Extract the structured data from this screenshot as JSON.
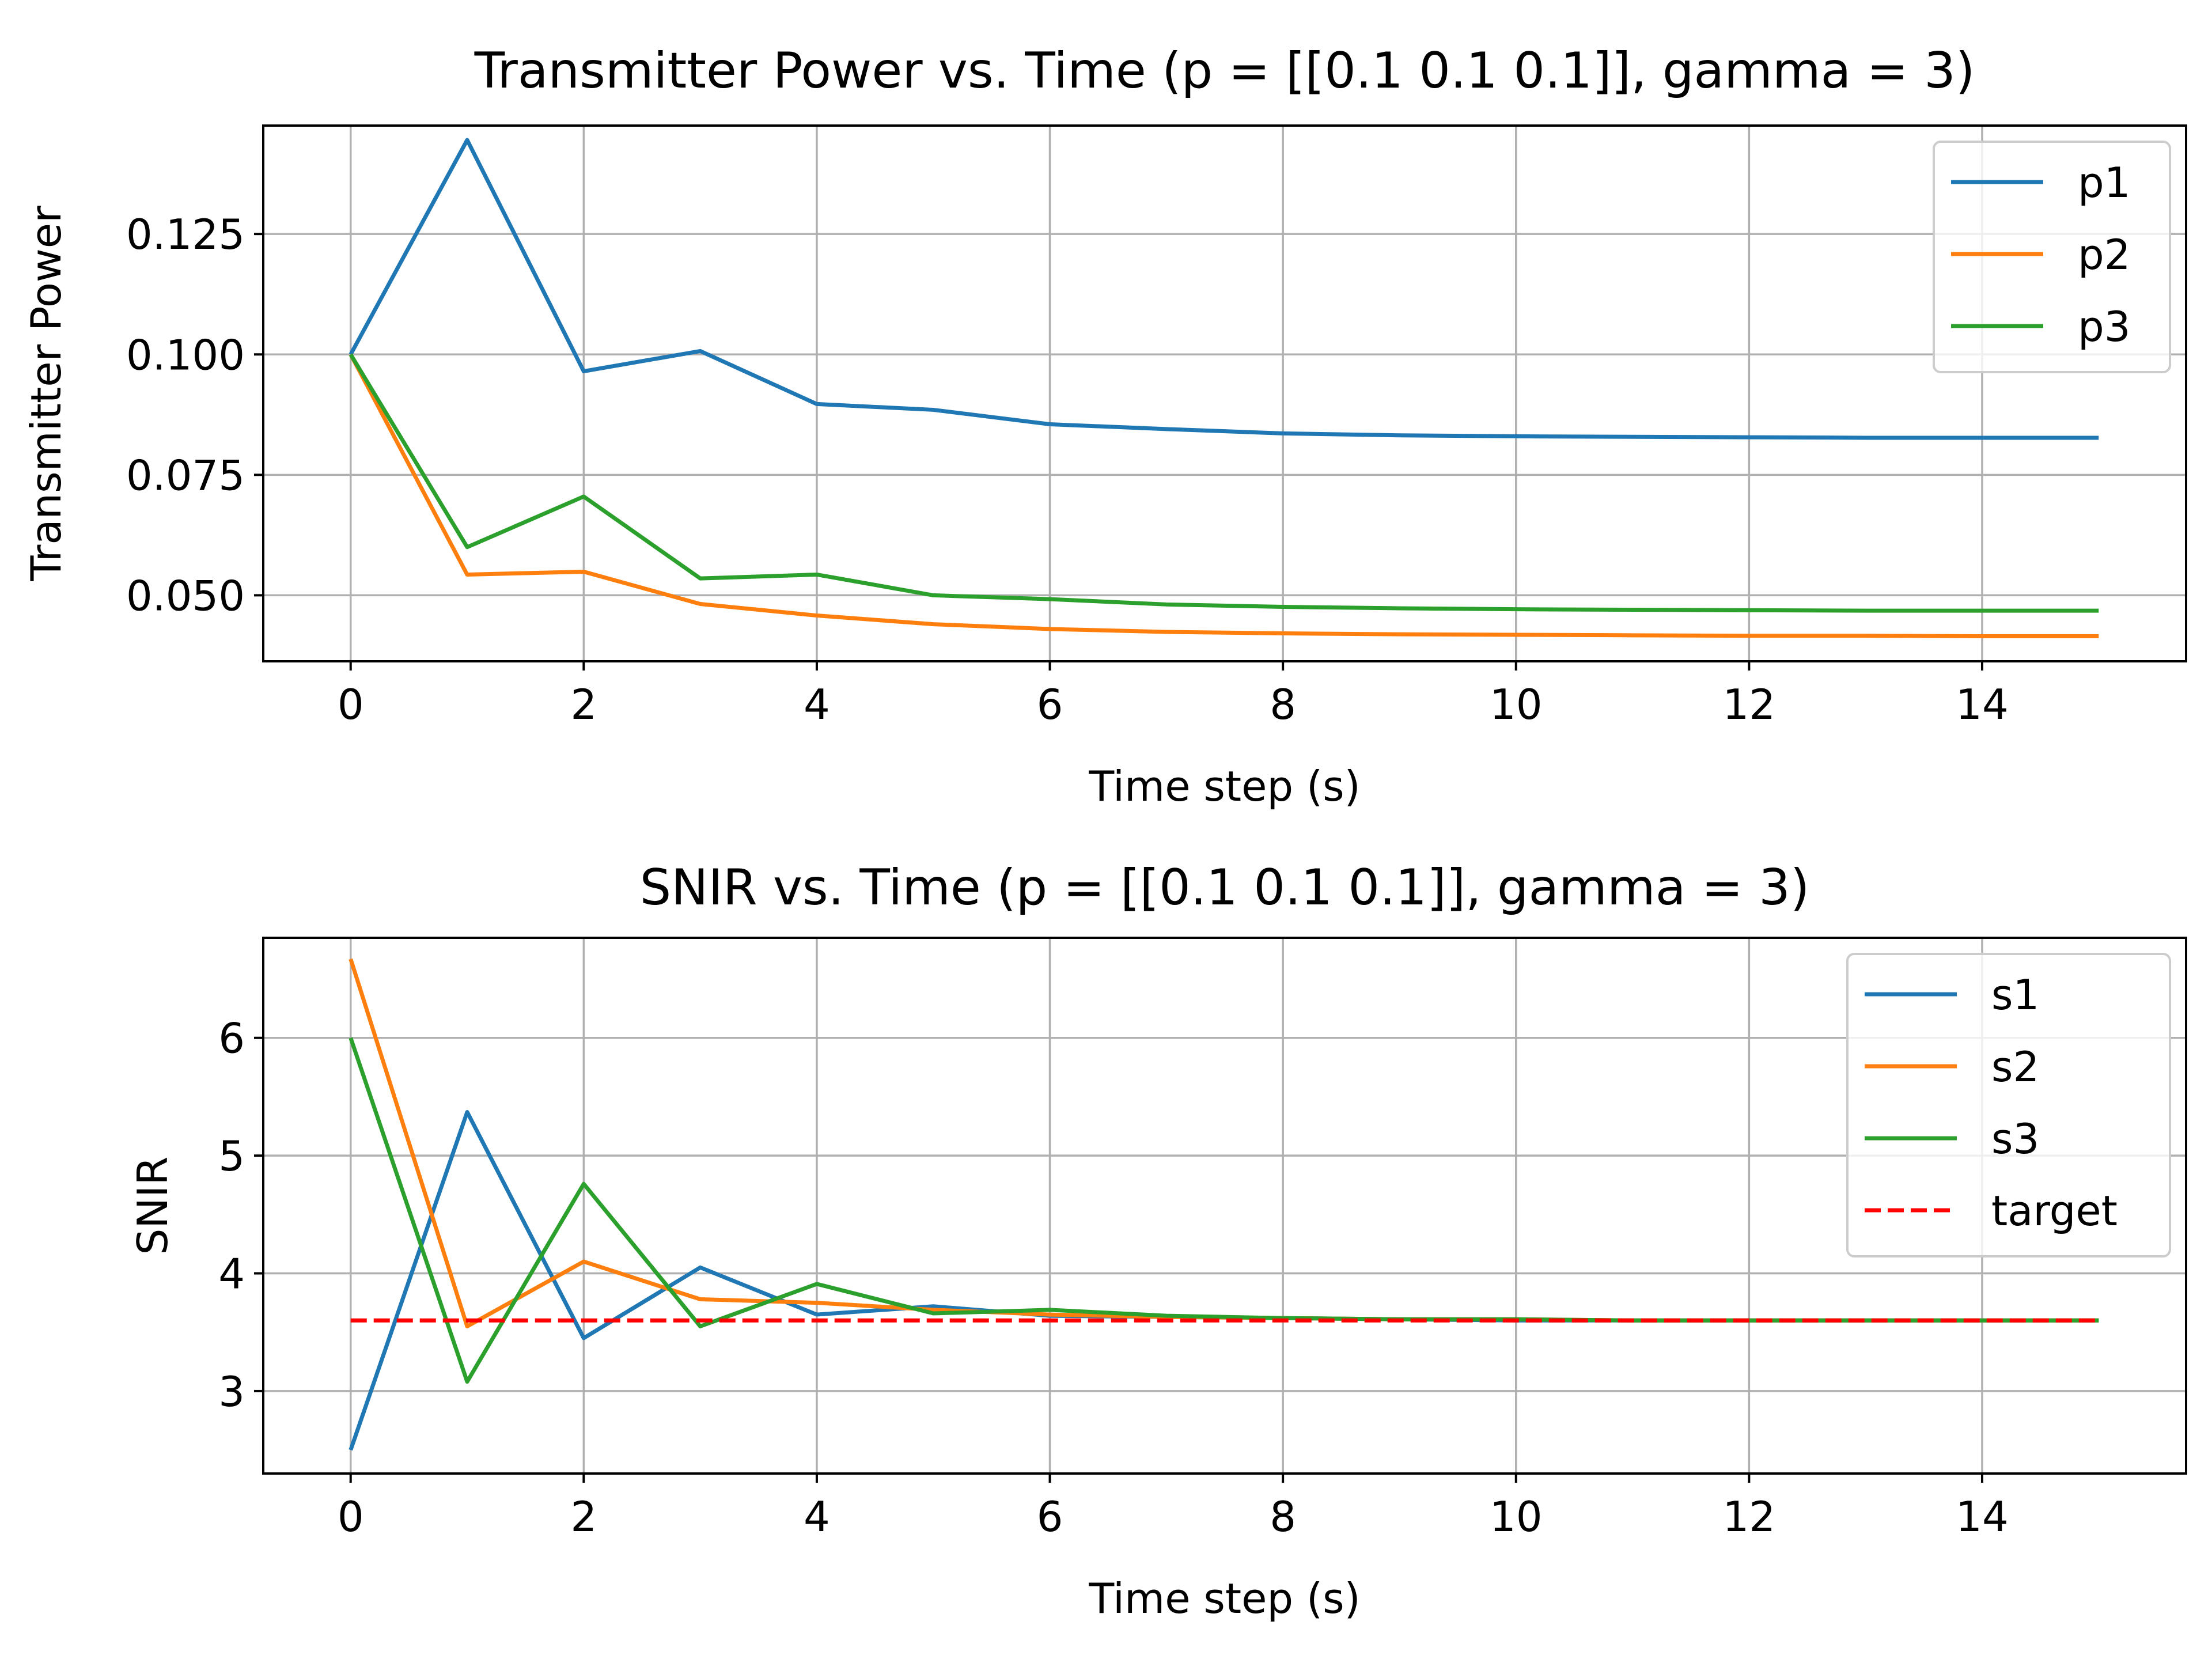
{
  "chart_data": [
    {
      "type": "line",
      "title": "Transmitter Power vs. Time (p = [[0.1 0.1 0.1]], gamma = 3)",
      "xlabel": "Time step (s)",
      "ylabel": "Transmitter Power",
      "xlim": [
        -0.75,
        15.75
      ],
      "ylim": [
        0.0363,
        0.1475
      ],
      "xticks": [
        0,
        2,
        4,
        6,
        8,
        10,
        12,
        14
      ],
      "xtick_labels": [
        "0",
        "2",
        "4",
        "6",
        "8",
        "10",
        "12",
        "14"
      ],
      "yticks": [
        0.05,
        0.075,
        0.1,
        0.125
      ],
      "ytick_labels": [
        "0.050",
        "0.075",
        "0.100",
        "0.125"
      ],
      "grid": true,
      "legend_position": "top-right",
      "x": [
        0,
        1,
        2,
        3,
        4,
        5,
        6,
        7,
        8,
        9,
        10,
        11,
        12,
        13,
        14,
        15
      ],
      "series": [
        {
          "name": "p1",
          "color": "#1f77b4",
          "dashed": false,
          "values": [
            0.1,
            0.1445,
            0.0965,
            0.1007,
            0.0897,
            0.0885,
            0.0855,
            0.0845,
            0.0836,
            0.0832,
            0.083,
            0.0829,
            0.0828,
            0.0827,
            0.0827,
            0.0827
          ]
        },
        {
          "name": "p2",
          "color": "#ff7f0e",
          "dashed": false,
          "values": [
            0.1,
            0.0543,
            0.0549,
            0.0482,
            0.0458,
            0.044,
            0.043,
            0.0424,
            0.0421,
            0.0419,
            0.0418,
            0.0417,
            0.0416,
            0.0416,
            0.0415,
            0.0415
          ]
        },
        {
          "name": "p3",
          "color": "#2ca02c",
          "dashed": false,
          "values": [
            0.1,
            0.06,
            0.0705,
            0.0535,
            0.0543,
            0.05,
            0.0492,
            0.0481,
            0.0476,
            0.0473,
            0.0471,
            0.047,
            0.0469,
            0.0468,
            0.0468,
            0.0468
          ]
        }
      ]
    },
    {
      "type": "line",
      "title": "SNIR vs. Time (p = [[0.1 0.1 0.1]], gamma = 3)",
      "xlabel": "Time step (s)",
      "ylabel": "SNIR",
      "xlim": [
        -0.75,
        15.75
      ],
      "ylim": [
        2.3,
        6.85
      ],
      "xticks": [
        0,
        2,
        4,
        6,
        8,
        10,
        12,
        14
      ],
      "xtick_labels": [
        "0",
        "2",
        "4",
        "6",
        "8",
        "10",
        "12",
        "14"
      ],
      "yticks": [
        3,
        4,
        5,
        6
      ],
      "ytick_labels": [
        "3",
        "4",
        "5",
        "6"
      ],
      "grid": true,
      "legend_position": "top-right",
      "x": [
        0,
        1,
        2,
        3,
        4,
        5,
        6,
        7,
        8,
        9,
        10,
        11,
        12,
        13,
        14,
        15
      ],
      "series": [
        {
          "name": "s1",
          "color": "#1f77b4",
          "dashed": false,
          "values": [
            2.5,
            5.37,
            3.45,
            4.05,
            3.65,
            3.72,
            3.64,
            3.63,
            3.62,
            3.61,
            3.6,
            3.6,
            3.6,
            3.6,
            3.6,
            3.6
          ]
        },
        {
          "name": "s2",
          "color": "#ff7f0e",
          "dashed": false,
          "values": [
            6.67,
            3.55,
            4.1,
            3.78,
            3.75,
            3.69,
            3.65,
            3.63,
            3.62,
            3.61,
            3.61,
            3.6,
            3.6,
            3.6,
            3.6,
            3.6
          ]
        },
        {
          "name": "s3",
          "color": "#2ca02c",
          "dashed": false,
          "values": [
            6.0,
            3.08,
            4.76,
            3.55,
            3.91,
            3.66,
            3.69,
            3.64,
            3.62,
            3.61,
            3.61,
            3.6,
            3.6,
            3.6,
            3.6,
            3.6
          ]
        },
        {
          "name": "target",
          "color": "#ff0000",
          "dashed": true,
          "values": [
            3.6,
            3.6,
            3.6,
            3.6,
            3.6,
            3.6,
            3.6,
            3.6,
            3.6,
            3.6,
            3.6,
            3.6,
            3.6,
            3.6,
            3.6,
            3.6
          ]
        }
      ]
    }
  ]
}
